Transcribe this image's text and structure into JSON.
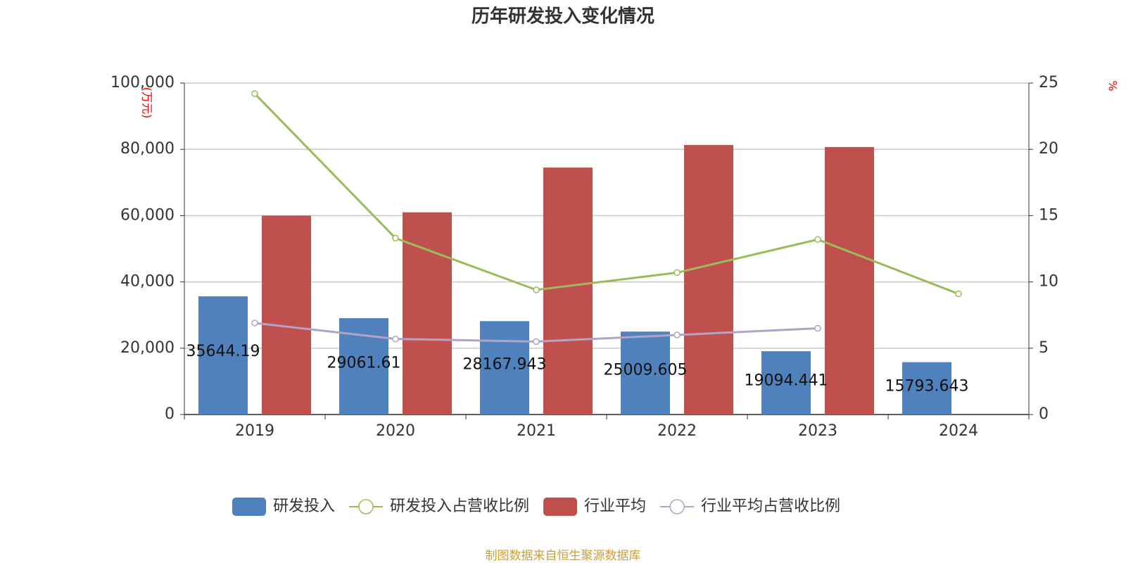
{
  "chart_data": {
    "type": "bar",
    "title": "历年研发投入变化情况",
    "y_label": "(万元)",
    "y2_label": "%",
    "source": "制图数据来自恒生聚源数据库",
    "categories": [
      "2019",
      "2020",
      "2021",
      "2022",
      "2023",
      "2024"
    ],
    "ylim": [
      0,
      100000
    ],
    "yticks": [
      0,
      {
        "value": 20000,
        "label": "20,000"
      },
      {
        "value": 40000,
        "label": "40,000"
      },
      {
        "value": 60000,
        "label": "60,000"
      },
      {
        "value": 80000,
        "label": "80,000"
      },
      {
        "value": 100000,
        "label": "100,000"
      }
    ],
    "y2lim": [
      0,
      25
    ],
    "y2ticks": [
      0,
      5,
      10,
      15,
      20,
      25
    ],
    "grid": true,
    "legend": "bottom",
    "series": [
      {
        "name": "研发投入",
        "type": "bar",
        "color": "#4f81bd",
        "values": [
          35644.19,
          29061.61,
          28167.943,
          25009.605,
          19094.441,
          15793.643
        ],
        "data_labels": true
      },
      {
        "name": "研发投入占营收比例",
        "type": "line",
        "axis": "y2",
        "color": "#9bbb59",
        "values": [
          24.2,
          13.3,
          9.4,
          10.7,
          13.2,
          9.1
        ]
      },
      {
        "name": "行业平均",
        "type": "bar",
        "color": "#c0504d",
        "values": [
          60000,
          61000,
          74500,
          81300,
          80700,
          null
        ]
      },
      {
        "name": "行业平均占营收比例",
        "type": "line",
        "axis": "y2",
        "color": "#b3a2c7",
        "values": [
          6.9,
          5.7,
          5.5,
          6.0,
          6.5,
          null
        ]
      }
    ]
  }
}
